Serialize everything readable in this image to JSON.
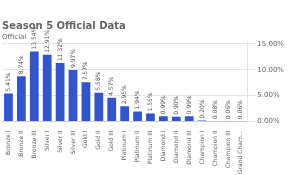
{
  "chart_data": {
    "type": "bar",
    "title": "Season 5 Official Data",
    "subtitle": "Official",
    "categories": [
      "Bronze I",
      "Bronze II",
      "Bronze III",
      "Silver I",
      "Silver II",
      "Silver III",
      "Gold I",
      "Gold II",
      "Gold III",
      "Platinum I",
      "Platinum II",
      "Platinum III",
      "Diamond I",
      "Diamond II",
      "Diamond III",
      "Champion I",
      "Champion II",
      "Champion III",
      "Grand Cham..."
    ],
    "values": [
      5.41,
      8.74,
      13.54,
      12.91,
      11.32,
      9.97,
      7.57,
      5.58,
      4.57,
      2.95,
      1.94,
      1.55,
      0.99,
      0.9,
      0.99,
      0.2,
      0.08,
      0.06,
      0.06
    ],
    "value_labels": [
      "5.41%",
      "8.74%",
      "13.54%",
      "12.91%",
      "11.32%",
      "9.97%",
      "7.57%",
      "5.58%",
      "4.57%",
      "2.95%",
      "1.94%",
      "1.55%",
      "0.99%",
      "0.90%",
      "0.99%",
      "0.20%",
      "0.08%",
      "0.06%",
      "0.06%"
    ],
    "color": "#3355cc",
    "ylim": [
      0,
      15.5
    ],
    "yticks": [
      {
        "value": 0,
        "label": "0.00%"
      },
      {
        "value": 5,
        "label": "5.00%"
      },
      {
        "value": 10,
        "label": "10.00%"
      },
      {
        "value": 15,
        "label": "15.00%"
      }
    ],
    "grid": true,
    "data_labels": true
  }
}
